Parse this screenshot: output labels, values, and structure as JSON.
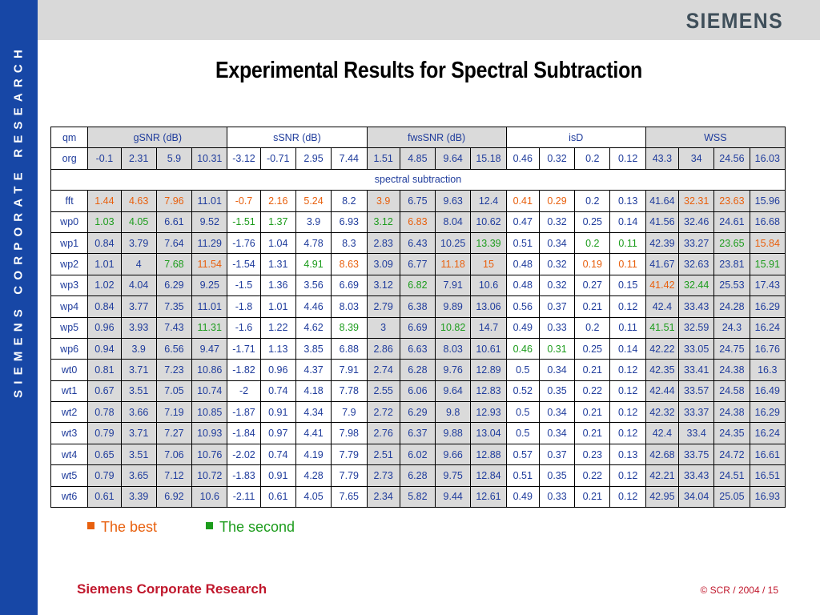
{
  "sidebar": {
    "text": "SIEMENS CORPORATE RESEARCH"
  },
  "header": {
    "logo": "SIEMENS"
  },
  "slide": {
    "title": "Experimental Results for Spectral Subtraction"
  },
  "colors": {
    "best": "#e8600e",
    "second": "#1c9c1c",
    "default": "#1f3c9c",
    "sidebar": "#1747a6",
    "footer": "#c0172c"
  },
  "table": {
    "corner": "qm",
    "groups": [
      "gSNR (dB)",
      "sSNR (dB)",
      "fwsSNR (dB)",
      "isD",
      "WSS"
    ],
    "section_label": "spectral subtraction",
    "baseline": {
      "label": "org",
      "values": [
        "-0.1",
        "2.31",
        "5.9",
        "10.31",
        "-3.12",
        "-0.71",
        "2.95",
        "7.44",
        "1.51",
        "4.85",
        "9.64",
        "15.18",
        "0.46",
        "0.32",
        "0.2",
        "0.12",
        "43.3",
        "34",
        "24.56",
        "16.03"
      ]
    },
    "rows": [
      {
        "label": "fft",
        "values": [
          "1.44",
          "4.63",
          "7.96",
          "11.01",
          "-0.7",
          "2.16",
          "5.24",
          "8.2",
          "3.9",
          "6.75",
          "9.63",
          "12.4",
          "0.41",
          "0.29",
          "0.2",
          "0.13",
          "41.64",
          "32.31",
          "23.63",
          "15.96"
        ],
        "marks": [
          "b",
          "b",
          "b",
          "",
          "b",
          "b",
          "b",
          "",
          "b",
          "",
          "",
          "",
          "b",
          "b",
          "",
          "",
          "",
          "b",
          "b",
          ""
        ]
      },
      {
        "label": "wp0",
        "values": [
          "1.03",
          "4.05",
          "6.61",
          "9.52",
          "-1.51",
          "1.37",
          "3.9",
          "6.93",
          "3.12",
          "6.83",
          "8.04",
          "10.62",
          "0.47",
          "0.32",
          "0.25",
          "0.14",
          "41.56",
          "32.46",
          "24.61",
          "16.68"
        ],
        "marks": [
          "s",
          "s",
          "",
          "",
          "s",
          "s",
          "",
          "",
          "s",
          "b",
          "",
          "",
          "",
          "",
          "",
          "",
          "",
          "",
          "",
          ""
        ]
      },
      {
        "label": "wp1",
        "values": [
          "0.84",
          "3.79",
          "7.64",
          "11.29",
          "-1.76",
          "1.04",
          "4.78",
          "8.3",
          "2.83",
          "6.43",
          "10.25",
          "13.39",
          "0.51",
          "0.34",
          "0.2",
          "0.11",
          "42.39",
          "33.27",
          "23.65",
          "15.84"
        ],
        "marks": [
          "",
          "",
          "",
          "",
          "",
          "",
          "",
          "",
          "",
          "",
          "",
          "s",
          "",
          "",
          "s",
          "s",
          "",
          "",
          "s",
          "b"
        ]
      },
      {
        "label": "wp2",
        "values": [
          "1.01",
          "4",
          "7.68",
          "11.54",
          "-1.54",
          "1.31",
          "4.91",
          "8.63",
          "3.09",
          "6.77",
          "11.18",
          "15",
          "0.48",
          "0.32",
          "0.19",
          "0.11",
          "41.67",
          "32.63",
          "23.81",
          "15.91"
        ],
        "marks": [
          "",
          "",
          "s",
          "b",
          "",
          "",
          "s",
          "b",
          "",
          "",
          "b",
          "b",
          "",
          "",
          "b",
          "b",
          "",
          "",
          "",
          "s"
        ]
      },
      {
        "label": "wp3",
        "values": [
          "1.02",
          "4.04",
          "6.29",
          "9.25",
          "-1.5",
          "1.36",
          "3.56",
          "6.69",
          "3.12",
          "6.82",
          "7.91",
          "10.6",
          "0.48",
          "0.32",
          "0.27",
          "0.15",
          "41.42",
          "32.44",
          "25.53",
          "17.43"
        ],
        "marks": [
          "",
          "",
          "",
          "",
          "",
          "",
          "",
          "",
          "",
          "s",
          "",
          "",
          "",
          "",
          "",
          "",
          "b",
          "s",
          "",
          ""
        ]
      },
      {
        "label": "wp4",
        "values": [
          "0.84",
          "3.77",
          "7.35",
          "11.01",
          "-1.8",
          "1.01",
          "4.46",
          "8.03",
          "2.79",
          "6.38",
          "9.89",
          "13.06",
          "0.56",
          "0.37",
          "0.21",
          "0.12",
          "42.4",
          "33.43",
          "24.28",
          "16.29"
        ],
        "marks": [
          "",
          "",
          "",
          "",
          "",
          "",
          "",
          "",
          "",
          "",
          "",
          "",
          "",
          "",
          "",
          "",
          "",
          "",
          "",
          ""
        ]
      },
      {
        "label": "wp5",
        "values": [
          "0.96",
          "3.93",
          "7.43",
          "11.31",
          "-1.6",
          "1.22",
          "4.62",
          "8.39",
          "3",
          "6.69",
          "10.82",
          "14.7",
          "0.49",
          "0.33",
          "0.2",
          "0.11",
          "41.51",
          "32.59",
          "24.3",
          "16.24"
        ],
        "marks": [
          "",
          "",
          "",
          "s",
          "",
          "",
          "",
          "s",
          "",
          "",
          "s",
          "",
          "",
          "",
          "",
          "",
          "s",
          "",
          "",
          ""
        ]
      },
      {
        "label": "wp6",
        "values": [
          "0.94",
          "3.9",
          "6.56",
          "9.47",
          "-1.71",
          "1.13",
          "3.85",
          "6.88",
          "2.86",
          "6.63",
          "8.03",
          "10.61",
          "0.46",
          "0.31",
          "0.25",
          "0.14",
          "42.22",
          "33.05",
          "24.75",
          "16.76"
        ],
        "marks": [
          "",
          "",
          "",
          "",
          "",
          "",
          "",
          "",
          "",
          "",
          "",
          "",
          "s",
          "s",
          "",
          "",
          "",
          "",
          "",
          ""
        ]
      },
      {
        "label": "wt0",
        "values": [
          "0.81",
          "3.71",
          "7.23",
          "10.86",
          "-1.82",
          "0.96",
          "4.37",
          "7.91",
          "2.74",
          "6.28",
          "9.76",
          "12.89",
          "0.5",
          "0.34",
          "0.21",
          "0.12",
          "42.35",
          "33.41",
          "24.38",
          "16.3"
        ],
        "marks": [
          "",
          "",
          "",
          "",
          "",
          "",
          "",
          "",
          "",
          "",
          "",
          "",
          "",
          "",
          "",
          "",
          "",
          "",
          "",
          ""
        ]
      },
      {
        "label": "wt1",
        "values": [
          "0.67",
          "3.51",
          "7.05",
          "10.74",
          "-2",
          "0.74",
          "4.18",
          "7.78",
          "2.55",
          "6.06",
          "9.64",
          "12.83",
          "0.52",
          "0.35",
          "0.22",
          "0.12",
          "42.44",
          "33.57",
          "24.58",
          "16.49"
        ],
        "marks": [
          "",
          "",
          "",
          "",
          "",
          "",
          "",
          "",
          "",
          "",
          "",
          "",
          "",
          "",
          "",
          "",
          "",
          "",
          "",
          ""
        ]
      },
      {
        "label": "wt2",
        "values": [
          "0.78",
          "3.66",
          "7.19",
          "10.85",
          "-1.87",
          "0.91",
          "4.34",
          "7.9",
          "2.72",
          "6.29",
          "9.8",
          "12.93",
          "0.5",
          "0.34",
          "0.21",
          "0.12",
          "42.32",
          "33.37",
          "24.38",
          "16.29"
        ],
        "marks": [
          "",
          "",
          "",
          "",
          "",
          "",
          "",
          "",
          "",
          "",
          "",
          "",
          "",
          "",
          "",
          "",
          "",
          "",
          "",
          ""
        ]
      },
      {
        "label": "wt3",
        "values": [
          "0.79",
          "3.71",
          "7.27",
          "10.93",
          "-1.84",
          "0.97",
          "4.41",
          "7.98",
          "2.76",
          "6.37",
          "9.88",
          "13.04",
          "0.5",
          "0.34",
          "0.21",
          "0.12",
          "42.4",
          "33.4",
          "24.35",
          "16.24"
        ],
        "marks": [
          "",
          "",
          "",
          "",
          "",
          "",
          "",
          "",
          "",
          "",
          "",
          "",
          "",
          "",
          "",
          "",
          "",
          "",
          "",
          ""
        ]
      },
      {
        "label": "wt4",
        "values": [
          "0.65",
          "3.51",
          "7.06",
          "10.76",
          "-2.02",
          "0.74",
          "4.19",
          "7.79",
          "2.51",
          "6.02",
          "9.66",
          "12.88",
          "0.57",
          "0.37",
          "0.23",
          "0.13",
          "42.68",
          "33.75",
          "24.72",
          "16.61"
        ],
        "marks": [
          "",
          "",
          "",
          "",
          "",
          "",
          "",
          "",
          "",
          "",
          "",
          "",
          "",
          "",
          "",
          "",
          "",
          "",
          "",
          ""
        ]
      },
      {
        "label": "wt5",
        "values": [
          "0.79",
          "3.65",
          "7.12",
          "10.72",
          "-1.83",
          "0.91",
          "4.28",
          "7.79",
          "2.73",
          "6.28",
          "9.75",
          "12.84",
          "0.51",
          "0.35",
          "0.22",
          "0.12",
          "42.21",
          "33.43",
          "24.51",
          "16.51"
        ],
        "marks": [
          "",
          "",
          "",
          "",
          "",
          "",
          "",
          "",
          "",
          "",
          "",
          "",
          "",
          "",
          "",
          "",
          "",
          "",
          "",
          ""
        ]
      },
      {
        "label": "wt6",
        "values": [
          "0.61",
          "3.39",
          "6.92",
          "10.6",
          "-2.11",
          "0.61",
          "4.05",
          "7.65",
          "2.34",
          "5.82",
          "9.44",
          "12.61",
          "0.49",
          "0.33",
          "0.21",
          "0.12",
          "42.95",
          "34.04",
          "25.05",
          "16.93"
        ],
        "marks": [
          "",
          "",
          "",
          "",
          "",
          "",
          "",
          "",
          "",
          "",
          "",
          "",
          "",
          "",
          "",
          "",
          "",
          "",
          "",
          ""
        ]
      }
    ]
  },
  "legend": {
    "best": "The best",
    "second": "The second"
  },
  "footer": {
    "left": "Siemens Corporate Research",
    "right": "© SCR / 2004 / 15"
  }
}
